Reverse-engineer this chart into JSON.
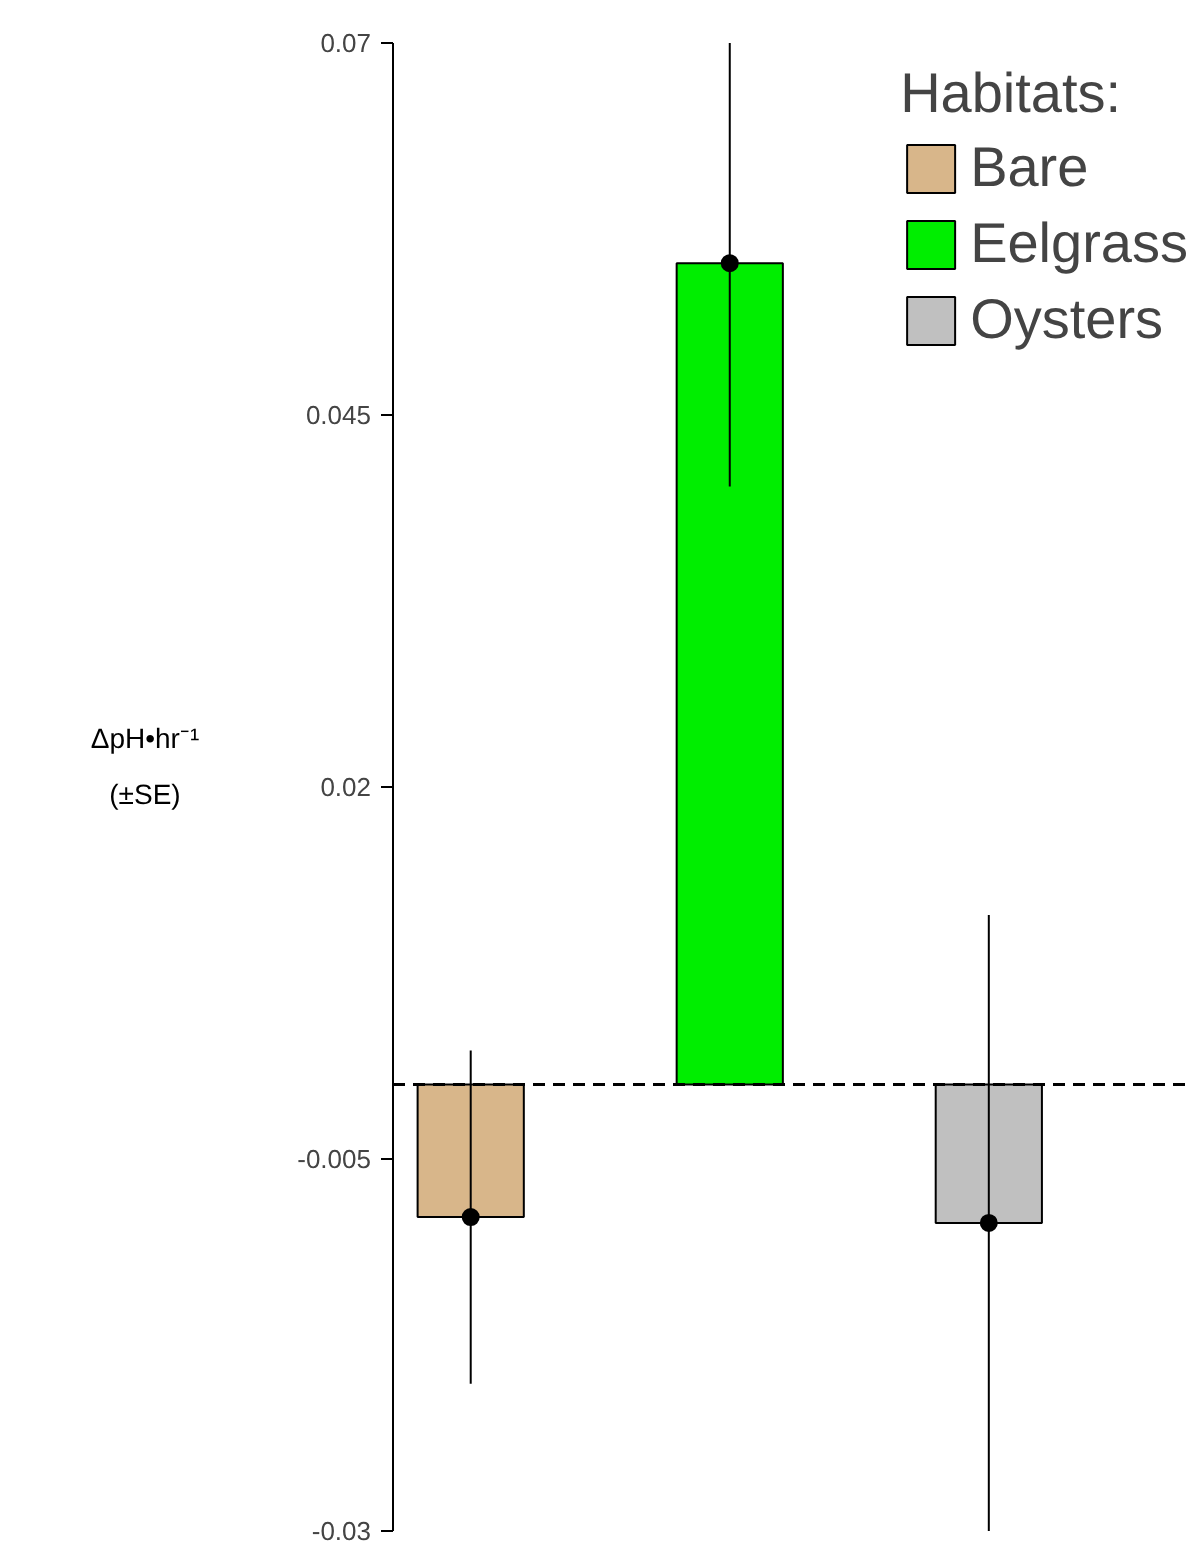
{
  "chart_data": {
    "type": "bar",
    "ylabel": "ΔpH•hr⁻¹\n(±SE)",
    "legend_title": "Habitats:",
    "categories": [
      null,
      null,
      null
    ],
    "series": [
      {
        "name": "Bare",
        "color": "#d8b68a",
        "values": [
          -0.0089,
          null,
          null
        ],
        "errors": [
          0.0112,
          null,
          null
        ]
      },
      {
        "name": "Eelgrass",
        "color": "#00ee00",
        "values": [
          null,
          0.0552,
          null
        ],
        "errors": [
          null,
          0.015,
          null
        ]
      },
      {
        "name": "Oysters",
        "color": "#c0c0c0",
        "values": [
          null,
          null,
          -0.0093
        ],
        "errors": [
          null,
          null,
          0.0207
        ]
      },
      {
        "type": "scatter",
        "color": "#000000",
        "values": [
          -0.0089,
          0.0552,
          -0.0093
        ],
        "marker": "circle"
      }
    ],
    "ylim": [
      -0.03,
      0.07
    ],
    "yticks": [
      {
        "value": -0.03,
        "label": "-0.03"
      },
      {
        "value": -0.005,
        "label": "-0.005"
      },
      {
        "value": 0.02,
        "label": "0.02"
      },
      {
        "value": 0.045,
        "label": "0.045"
      },
      {
        "value": 0.07,
        "label": "0.07"
      }
    ],
    "ref_lines": [
      {
        "axis": "y",
        "value": 0,
        "color": "#000000",
        "line_style": "dashed"
      }
    ],
    "legend": "top right",
    "tick_labels": "y",
    "grid": false
  }
}
